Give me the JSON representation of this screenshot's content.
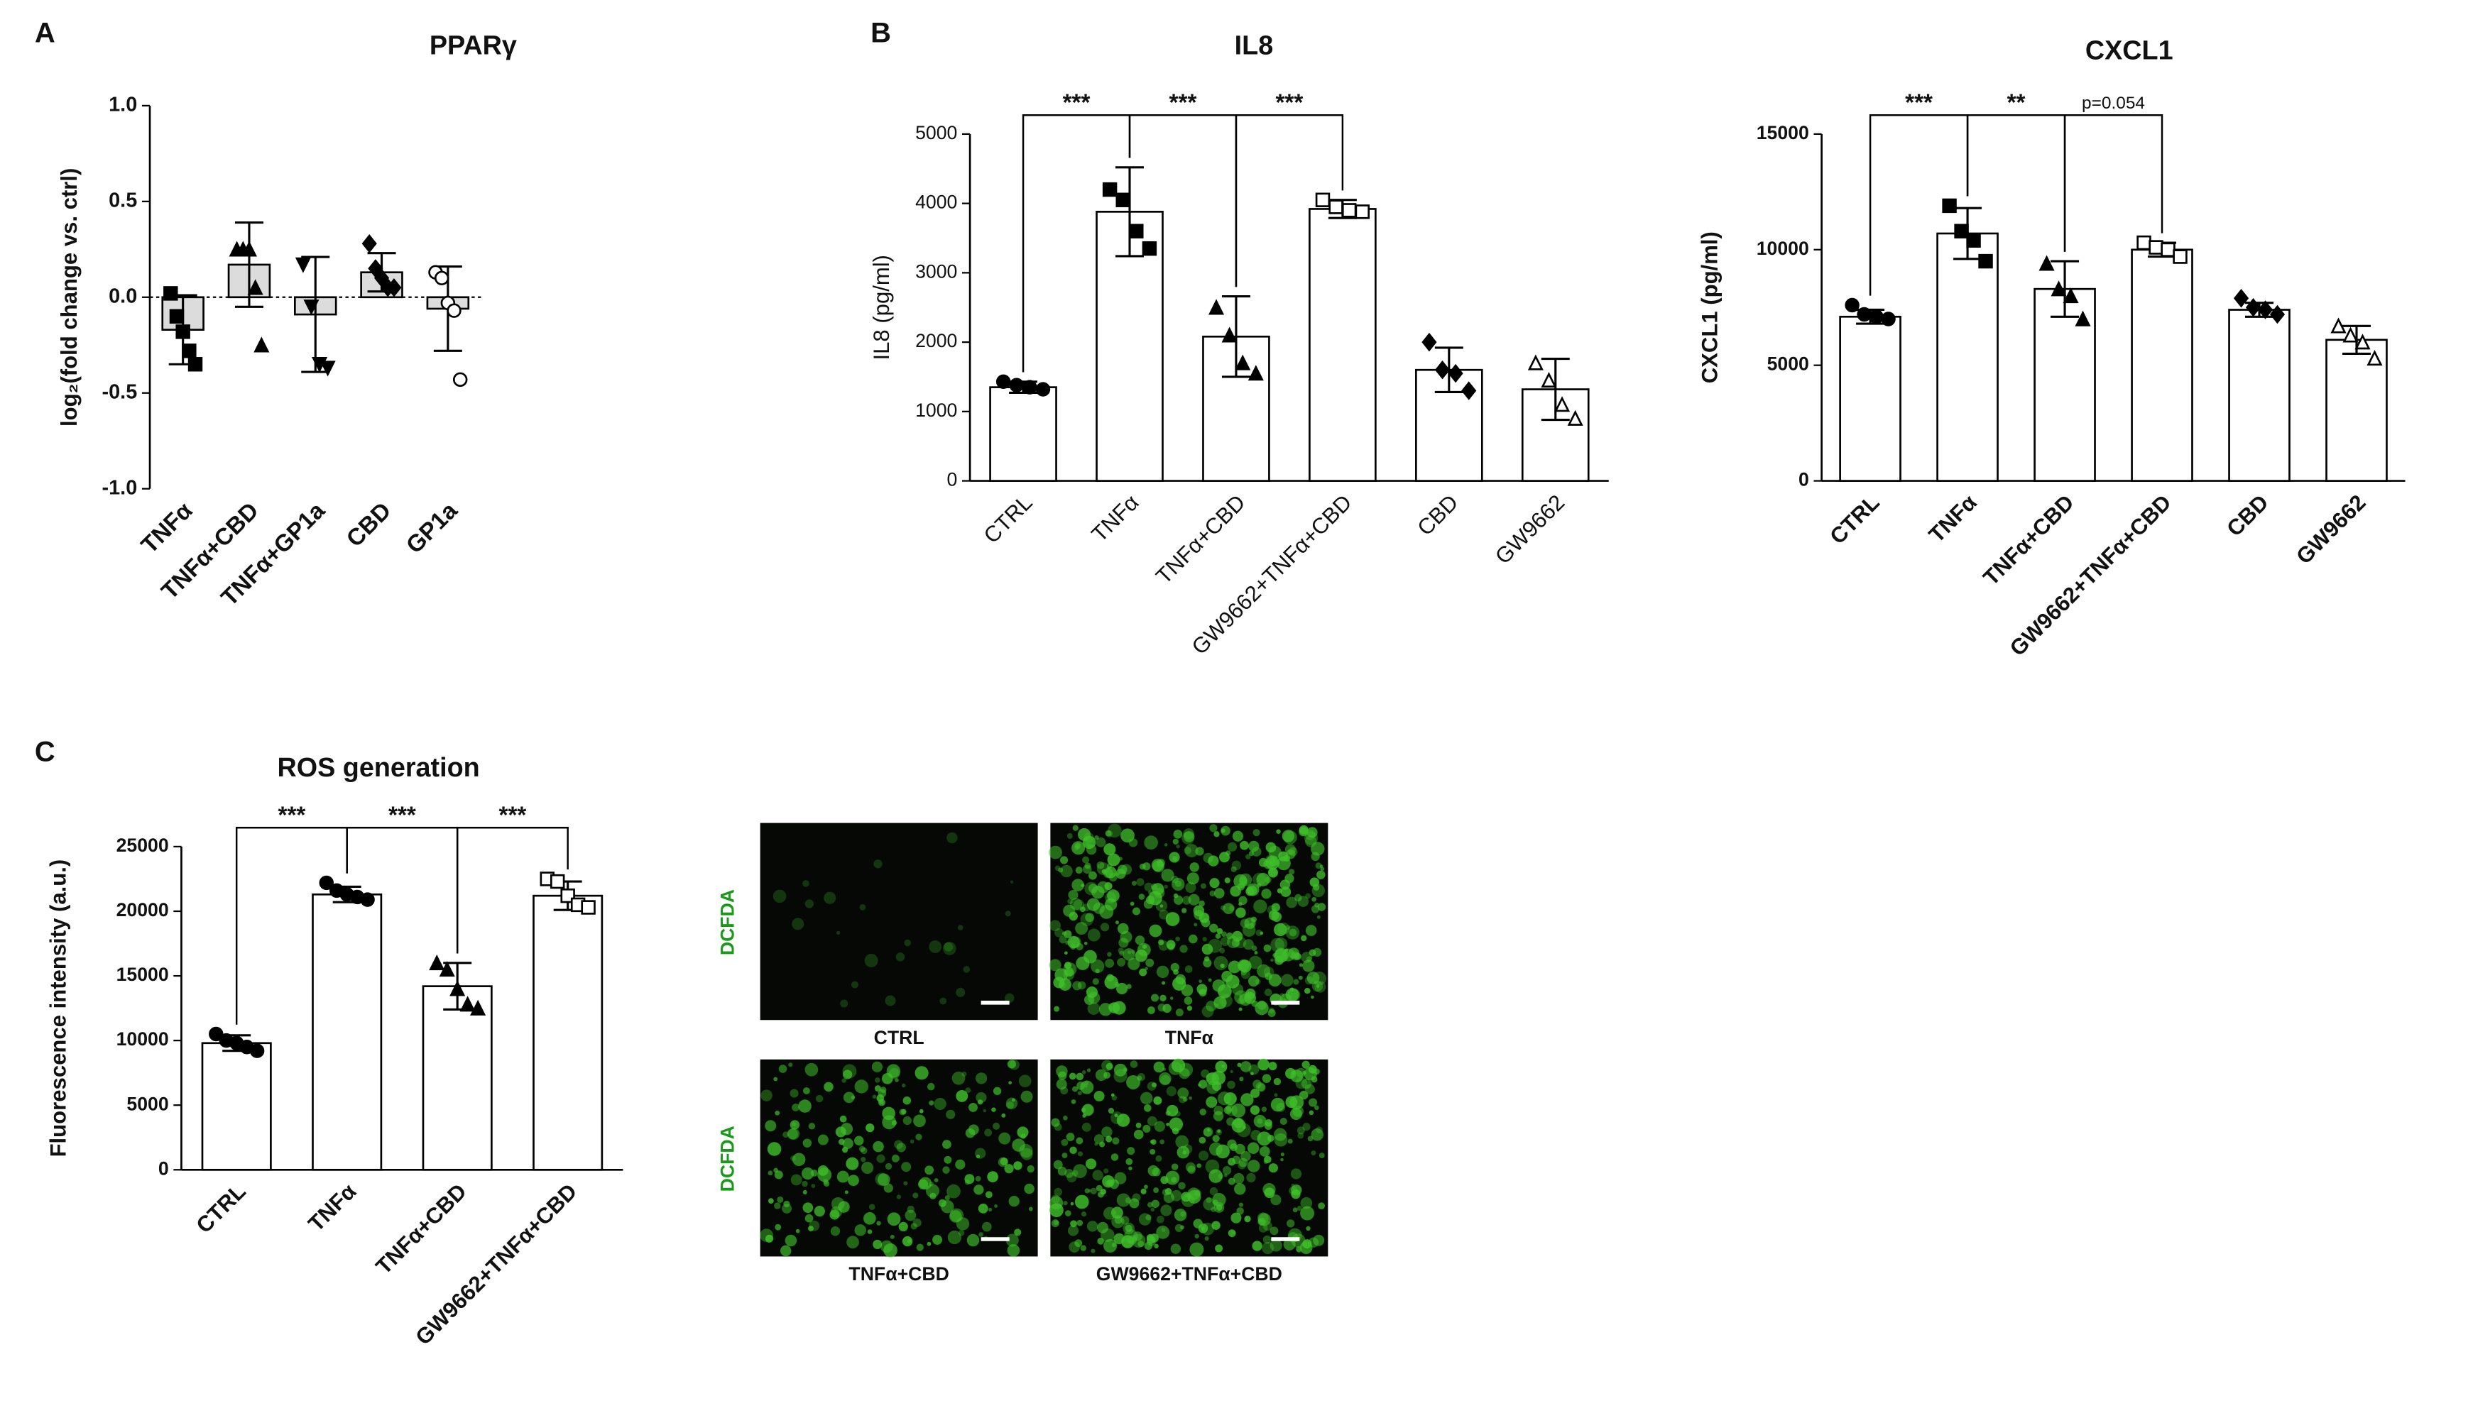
{
  "panels": {
    "letters": [
      "A",
      "B",
      "C"
    ]
  },
  "chart_data": [
    {
      "type": "bar",
      "title": "PPARγ",
      "ylabel": "log₂(fold change vs. ctrl)",
      "categories": [
        "TNFα",
        "TNFα+CBD",
        "TNFα+GP1a",
        "CBD",
        "GP1a"
      ],
      "values": [
        -0.17,
        0.17,
        -0.09,
        0.13,
        -0.06
      ],
      "errors": [
        0.18,
        0.22,
        0.3,
        0.1,
        0.22
      ],
      "points": [
        [
          0.02,
          -0.1,
          -0.18,
          -0.28,
          -0.35
        ],
        [
          0.25,
          0.25,
          0.25,
          0.05,
          -0.25
        ],
        [
          0.17,
          -0.05,
          -0.35,
          -0.37
        ],
        [
          0.28,
          0.15,
          0.1,
          0.05,
          0.05
        ],
        [
          0.13,
          0.1,
          -0.03,
          -0.07,
          -0.43
        ]
      ],
      "markers": [
        "square",
        "triangle",
        "invtriangle",
        "diamond",
        "open-circle"
      ],
      "color": "#dcdcdc",
      "ylim": [
        -1,
        1
      ],
      "yticks": [
        {
          "value": 1,
          "label": "1.0"
        },
        0.5,
        {
          "value": 0,
          "label": "0.0"
        },
        -0.5,
        {
          "value": -1,
          "label": "-1.0"
        }
      ],
      "zero_line": "dotted"
    },
    {
      "type": "bar",
      "title": "IL8",
      "ylabel": "IL8 (pg/ml)",
      "categories": [
        "CTRL",
        "TNFα",
        "TNFα+CBD",
        "GW9662+TNFα+CBD",
        "CBD",
        "GW9662"
      ],
      "values": [
        1350,
        3880,
        2080,
        3920,
        1600,
        1320
      ],
      "errors": [
        80,
        640,
        580,
        130,
        320,
        440
      ],
      "points": [
        [
          1430,
          1380,
          1350,
          1320
        ],
        [
          4200,
          4050,
          3600,
          3350
        ],
        [
          2500,
          2100,
          1700,
          1550
        ],
        [
          4050,
          3950,
          3900,
          3880
        ],
        [
          2000,
          1600,
          1550,
          1300
        ],
        [
          1700,
          1450,
          1100,
          900
        ]
      ],
      "markers": [
        "circle",
        "square",
        "triangle",
        "open-square",
        "diamond",
        "open-triangle"
      ],
      "color": "#ffffff",
      "ylim": [
        0,
        5000
      ],
      "yticks": [
        0,
        1000,
        2000,
        3000,
        4000,
        5000
      ],
      "annotations": [
        {
          "from": 0,
          "to": 1,
          "text": "***"
        },
        {
          "from": 1,
          "to": 2,
          "text": "***"
        },
        {
          "from": 2,
          "to": 3,
          "text": "***"
        }
      ]
    },
    {
      "type": "bar",
      "title": "CXCL1",
      "ylabel": "CXCL1 (pg/ml)",
      "categories": [
        "CTRL",
        "TNFα",
        "TNFα+CBD",
        "GW9662+TNFα+CBD",
        "CBD",
        "GW9662"
      ],
      "values": [
        7100,
        10700,
        8300,
        10000,
        7400,
        6100
      ],
      "errors": [
        300,
        1100,
        1200,
        300,
        300,
        600
      ],
      "points": [
        [
          7600,
          7200,
          7100,
          7000
        ],
        [
          11900,
          10800,
          10400,
          9500
        ],
        [
          9400,
          8300,
          8000,
          7000
        ],
        [
          10300,
          10100,
          10000,
          9700
        ],
        [
          7900,
          7500,
          7400,
          7200
        ],
        [
          6700,
          6300,
          6000,
          5300
        ]
      ],
      "markers": [
        "circle",
        "square",
        "triangle",
        "open-square",
        "diamond",
        "open-triangle"
      ],
      "color": "#ffffff",
      "ylim": [
        0,
        15000
      ],
      "yticks": [
        0,
        5000,
        10000,
        15000
      ],
      "annotations": [
        {
          "from": 0,
          "to": 1,
          "text": "***"
        },
        {
          "from": 1,
          "to": 2,
          "text": "**"
        },
        {
          "from": 2,
          "to": 3,
          "text": "p=0.054"
        }
      ]
    },
    {
      "type": "bar",
      "title": "ROS generation",
      "ylabel": "Fluorescence intensity (a.u.)",
      "categories": [
        "CTRL",
        "TNFα",
        "TNFα+CBD",
        "GW9662+TNFα+CBD"
      ],
      "values": [
        9800,
        21300,
        14200,
        21200
      ],
      "errors": [
        600,
        600,
        1800,
        1100
      ],
      "points": [
        [
          10500,
          10000,
          9800,
          9500,
          9200
        ],
        [
          22200,
          21600,
          21300,
          21100,
          20900
        ],
        [
          16000,
          15500,
          14000,
          12800,
          12500
        ],
        [
          22500,
          22300,
          21200,
          20500,
          20300
        ]
      ],
      "markers": [
        "circle",
        "circle",
        "triangle",
        "open-square"
      ],
      "color": "#ffffff",
      "ylim": [
        0,
        25000
      ],
      "yticks": [
        0,
        5000,
        10000,
        15000,
        20000,
        25000
      ],
      "annotations": [
        {
          "from": 0,
          "to": 1,
          "text": "***"
        },
        {
          "from": 1,
          "to": 2,
          "text": "***"
        },
        {
          "from": 2,
          "to": 3,
          "text": "***"
        }
      ]
    }
  ],
  "images": {
    "stain": [
      "DCFDA",
      "DCFDA"
    ],
    "labels": [
      "CTRL",
      "TNFα",
      "TNFα+CBD",
      "GW9662+TNFα+CBD"
    ]
  }
}
